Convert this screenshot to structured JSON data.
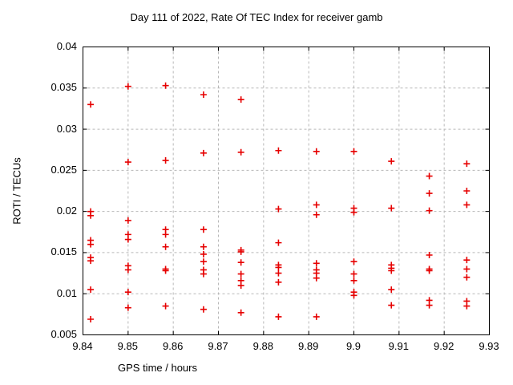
{
  "title": "Day 111 of 2022, Rate Of TEC Index for receiver gamb",
  "chart_data": {
    "type": "scatter",
    "title": "Day 111 of 2022, Rate Of TEC Index for receiver gamb",
    "xlabel": "GPS time / hours",
    "ylabel": "ROTI / TECUs",
    "xlim": [
      9.84,
      9.93
    ],
    "ylim": [
      0.005,
      0.04
    ],
    "x_ticks": [
      9.84,
      9.85,
      9.86,
      9.87,
      9.88,
      9.89,
      9.9,
      9.91,
      9.92,
      9.93
    ],
    "x_tick_labels": [
      "9.84",
      "9.85",
      "9.86",
      "9.87",
      "9.88",
      "9.89",
      "9.9",
      "9.91",
      "9.92",
      "9.93"
    ],
    "y_ticks": [
      0.005,
      0.01,
      0.015,
      0.02,
      0.025,
      0.03,
      0.035,
      0.04
    ],
    "y_tick_labels": [
      "0.005",
      "0.01",
      "0.015",
      "0.02",
      "0.025",
      "0.03",
      "0.035",
      "0.04"
    ],
    "grid": true,
    "legend_position": "none",
    "marker": "plus",
    "marker_color": "#e60000",
    "grid_color": "#b8b8b8",
    "axis_color": "#000000",
    "background_color": "#ffffff",
    "series": [
      {
        "name": "ROTI",
        "points": [
          [
            9.8417,
            0.033
          ],
          [
            9.8417,
            0.02
          ],
          [
            9.8417,
            0.0195
          ],
          [
            9.8417,
            0.0165
          ],
          [
            9.8417,
            0.016
          ],
          [
            9.8417,
            0.0144
          ],
          [
            9.8417,
            0.014
          ],
          [
            9.8417,
            0.0105
          ],
          [
            9.8417,
            0.0069
          ],
          [
            9.85,
            0.0352
          ],
          [
            9.85,
            0.026
          ],
          [
            9.85,
            0.0189
          ],
          [
            9.85,
            0.0172
          ],
          [
            9.85,
            0.0166
          ],
          [
            9.85,
            0.0134
          ],
          [
            9.85,
            0.0129
          ],
          [
            9.85,
            0.0102
          ],
          [
            9.85,
            0.0083
          ],
          [
            9.8583,
            0.0353
          ],
          [
            9.8583,
            0.0262
          ],
          [
            9.8583,
            0.0178
          ],
          [
            9.8583,
            0.0172
          ],
          [
            9.8583,
            0.0157
          ],
          [
            9.8583,
            0.013
          ],
          [
            9.8583,
            0.0128
          ],
          [
            9.8583,
            0.0085
          ],
          [
            9.8667,
            0.0342
          ],
          [
            9.8667,
            0.0271
          ],
          [
            9.8667,
            0.0178
          ],
          [
            9.8667,
            0.0157
          ],
          [
            9.8667,
            0.0148
          ],
          [
            9.8667,
            0.0139
          ],
          [
            9.8667,
            0.0129
          ],
          [
            9.8667,
            0.0124
          ],
          [
            9.8667,
            0.0081
          ],
          [
            9.875,
            0.0336
          ],
          [
            9.875,
            0.0272
          ],
          [
            9.875,
            0.0153
          ],
          [
            9.875,
            0.0151
          ],
          [
            9.875,
            0.0138
          ],
          [
            9.875,
            0.0124
          ],
          [
            9.875,
            0.0116
          ],
          [
            9.875,
            0.011
          ],
          [
            9.875,
            0.0077
          ],
          [
            9.8833,
            0.0274
          ],
          [
            9.8833,
            0.0203
          ],
          [
            9.8833,
            0.0162
          ],
          [
            9.8833,
            0.0135
          ],
          [
            9.8833,
            0.0132
          ],
          [
            9.8833,
            0.0125
          ],
          [
            9.8833,
            0.0114
          ],
          [
            9.8833,
            0.0072
          ],
          [
            9.8917,
            0.0273
          ],
          [
            9.8917,
            0.0208
          ],
          [
            9.8917,
            0.0196
          ],
          [
            9.8917,
            0.0137
          ],
          [
            9.8917,
            0.0129
          ],
          [
            9.8917,
            0.0125
          ],
          [
            9.8917,
            0.0119
          ],
          [
            9.8917,
            0.0072
          ],
          [
            9.9,
            0.0273
          ],
          [
            9.9,
            0.0204
          ],
          [
            9.9,
            0.0199
          ],
          [
            9.9,
            0.0139
          ],
          [
            9.9,
            0.0124
          ],
          [
            9.9,
            0.0116
          ],
          [
            9.9,
            0.0102
          ],
          [
            9.9,
            0.0098
          ],
          [
            9.9083,
            0.0261
          ],
          [
            9.9083,
            0.0204
          ],
          [
            9.9083,
            0.0135
          ],
          [
            9.9083,
            0.0131
          ],
          [
            9.9083,
            0.0128
          ],
          [
            9.9083,
            0.0105
          ],
          [
            9.9083,
            0.0086
          ],
          [
            9.9167,
            0.0243
          ],
          [
            9.9167,
            0.0222
          ],
          [
            9.9167,
            0.0201
          ],
          [
            9.9167,
            0.0147
          ],
          [
            9.9167,
            0.013
          ],
          [
            9.9167,
            0.0128
          ],
          [
            9.9167,
            0.0092
          ],
          [
            9.9167,
            0.0086
          ],
          [
            9.925,
            0.0258
          ],
          [
            9.925,
            0.0225
          ],
          [
            9.925,
            0.0208
          ],
          [
            9.925,
            0.0141
          ],
          [
            9.925,
            0.013
          ],
          [
            9.925,
            0.012
          ],
          [
            9.925,
            0.0091
          ],
          [
            9.925,
            0.0085
          ]
        ]
      }
    ]
  }
}
